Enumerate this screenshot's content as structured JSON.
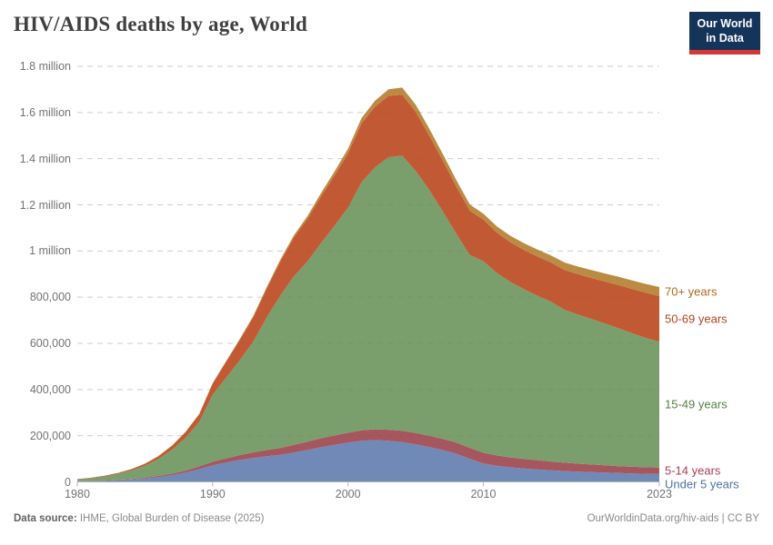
{
  "header": {
    "title": "HIV/AIDS deaths by age, World",
    "logo": {
      "line1": "Our World",
      "line2": "in Data",
      "bg_color": "#15345a",
      "bar_color": "#d73732"
    }
  },
  "chart_data": {
    "type": "area",
    "stacked": true,
    "title": "HIV/AIDS deaths by age, World",
    "xlabel": "",
    "ylabel": "",
    "grid": "dashed-horizontal",
    "legend_position": "right-of-plot",
    "x": [
      1980,
      1981,
      1982,
      1983,
      1984,
      1985,
      1986,
      1987,
      1988,
      1989,
      1990,
      1991,
      1992,
      1993,
      1994,
      1995,
      1996,
      1997,
      1998,
      1999,
      2000,
      2001,
      2002,
      2003,
      2004,
      2005,
      2006,
      2007,
      2008,
      2009,
      2010,
      2011,
      2012,
      2013,
      2014,
      2015,
      2016,
      2017,
      2018,
      2019,
      2020,
      2021,
      2022,
      2023
    ],
    "x_axis": {
      "range": [
        1980,
        2023
      ],
      "ticks": [
        {
          "value": 1980,
          "label": "1980"
        },
        {
          "value": 1990,
          "label": "1990"
        },
        {
          "value": 2000,
          "label": "2000"
        },
        {
          "value": 2010,
          "label": "2010"
        },
        {
          "value": 2023,
          "label": "2023"
        }
      ]
    },
    "y_axis": {
      "range": [
        0,
        1800000
      ],
      "ticks": [
        {
          "value": 0,
          "label": "0"
        },
        {
          "value": 200000,
          "label": "200,000"
        },
        {
          "value": 400000,
          "label": "400,000"
        },
        {
          "value": 600000,
          "label": "600,000"
        },
        {
          "value": 800000,
          "label": "800,000"
        },
        {
          "value": 1000000,
          "label": "1 million"
        },
        {
          "value": 1200000,
          "label": "1.2 million"
        },
        {
          "value": 1400000,
          "label": "1.4 million"
        },
        {
          "value": 1600000,
          "label": "1.6 million"
        },
        {
          "value": 1800000,
          "label": "1.8 million"
        }
      ]
    },
    "series": [
      {
        "id": "under-5",
        "label": "Under 5 years",
        "color": "#7189b6",
        "label_color": "#5272a4",
        "values": [
          2500,
          3500,
          5500,
          8000,
          11000,
          15000,
          21000,
          29000,
          40000,
          55000,
          72000,
          84000,
          95000,
          104000,
          111000,
          117000,
          127000,
          138000,
          150000,
          160000,
          170000,
          178000,
          181000,
          178000,
          172000,
          163000,
          151000,
          138000,
          122000,
          100000,
          80000,
          70000,
          63000,
          58000,
          54000,
          50000,
          47000,
          44000,
          42000,
          40000,
          38000,
          36500,
          35000,
          34000
        ]
      },
      {
        "id": "5-14",
        "label": "5-14 years",
        "color": "#a5565f",
        "label_color": "#ab3d55",
        "values": [
          400,
          600,
          1000,
          1400,
          2100,
          3000,
          4400,
          6300,
          8800,
          11800,
          15000,
          18000,
          21000,
          24000,
          27000,
          30000,
          33000,
          36000,
          39000,
          41000,
          43000,
          45000,
          47000,
          48000,
          49000,
          49000,
          49000,
          48500,
          48000,
          47500,
          46000,
          44500,
          43000,
          41500,
          40000,
          38000,
          36000,
          34500,
          33000,
          31500,
          30000,
          29000,
          28500,
          28000
        ]
      },
      {
        "id": "15-49",
        "label": "15-49 years",
        "color": "#7b9e6d",
        "label_color": "#577f44",
        "values": [
          8000,
          12000,
          17000,
          25000,
          36000,
          52000,
          74000,
          104000,
          143000,
          192000,
          290000,
          350000,
          410000,
          480000,
          575000,
          660000,
          730000,
          780000,
          845000,
          908000,
          975000,
          1075000,
          1135000,
          1180000,
          1192000,
          1135000,
          1065000,
          985000,
          905000,
          835000,
          830000,
          790000,
          760000,
          735000,
          712000,
          692000,
          662000,
          646000,
          630000,
          614000,
          597000,
          578000,
          560000,
          545000
        ]
      },
      {
        "id": "50-69",
        "label": "50-69 years",
        "color": "#c15a34",
        "label_color": "#b54220",
        "values": [
          1200,
          1800,
          2700,
          4000,
          5800,
          8400,
          12000,
          17000,
          24000,
          33000,
          48000,
          68000,
          88000,
          105000,
          125000,
          148000,
          168000,
          185000,
          202000,
          218000,
          235000,
          255000,
          262000,
          266000,
          264000,
          256000,
          235000,
          220000,
          205000,
          192000,
          180000,
          175000,
          172000,
          170000,
          170000,
          170000,
          172500,
          175000,
          178000,
          182000,
          187000,
          192000,
          196000,
          198000
        ]
      },
      {
        "id": "70-plus",
        "label": "70+ years",
        "color": "#bc8b43",
        "label_color": "#ae6b1c",
        "values": [
          150,
          200,
          300,
          400,
          600,
          800,
          1000,
          1400,
          1800,
          2300,
          3000,
          3600,
          4400,
          5400,
          6500,
          8000,
          10000,
          12000,
          14000,
          17000,
          20000,
          23000,
          26000,
          29000,
          31000,
          31000,
          30000,
          29000,
          28000,
          27000,
          26000,
          27000,
          28000,
          29000,
          30000,
          31000,
          32500,
          33000,
          34000,
          35000,
          36000,
          37000,
          38000,
          39000
        ]
      }
    ]
  },
  "footer": {
    "source_label": "Data source:",
    "source_text": " IHME, Global Burden of Disease (2025)",
    "credit": "OurWorldinData.org/hiv-aids | CC BY"
  }
}
